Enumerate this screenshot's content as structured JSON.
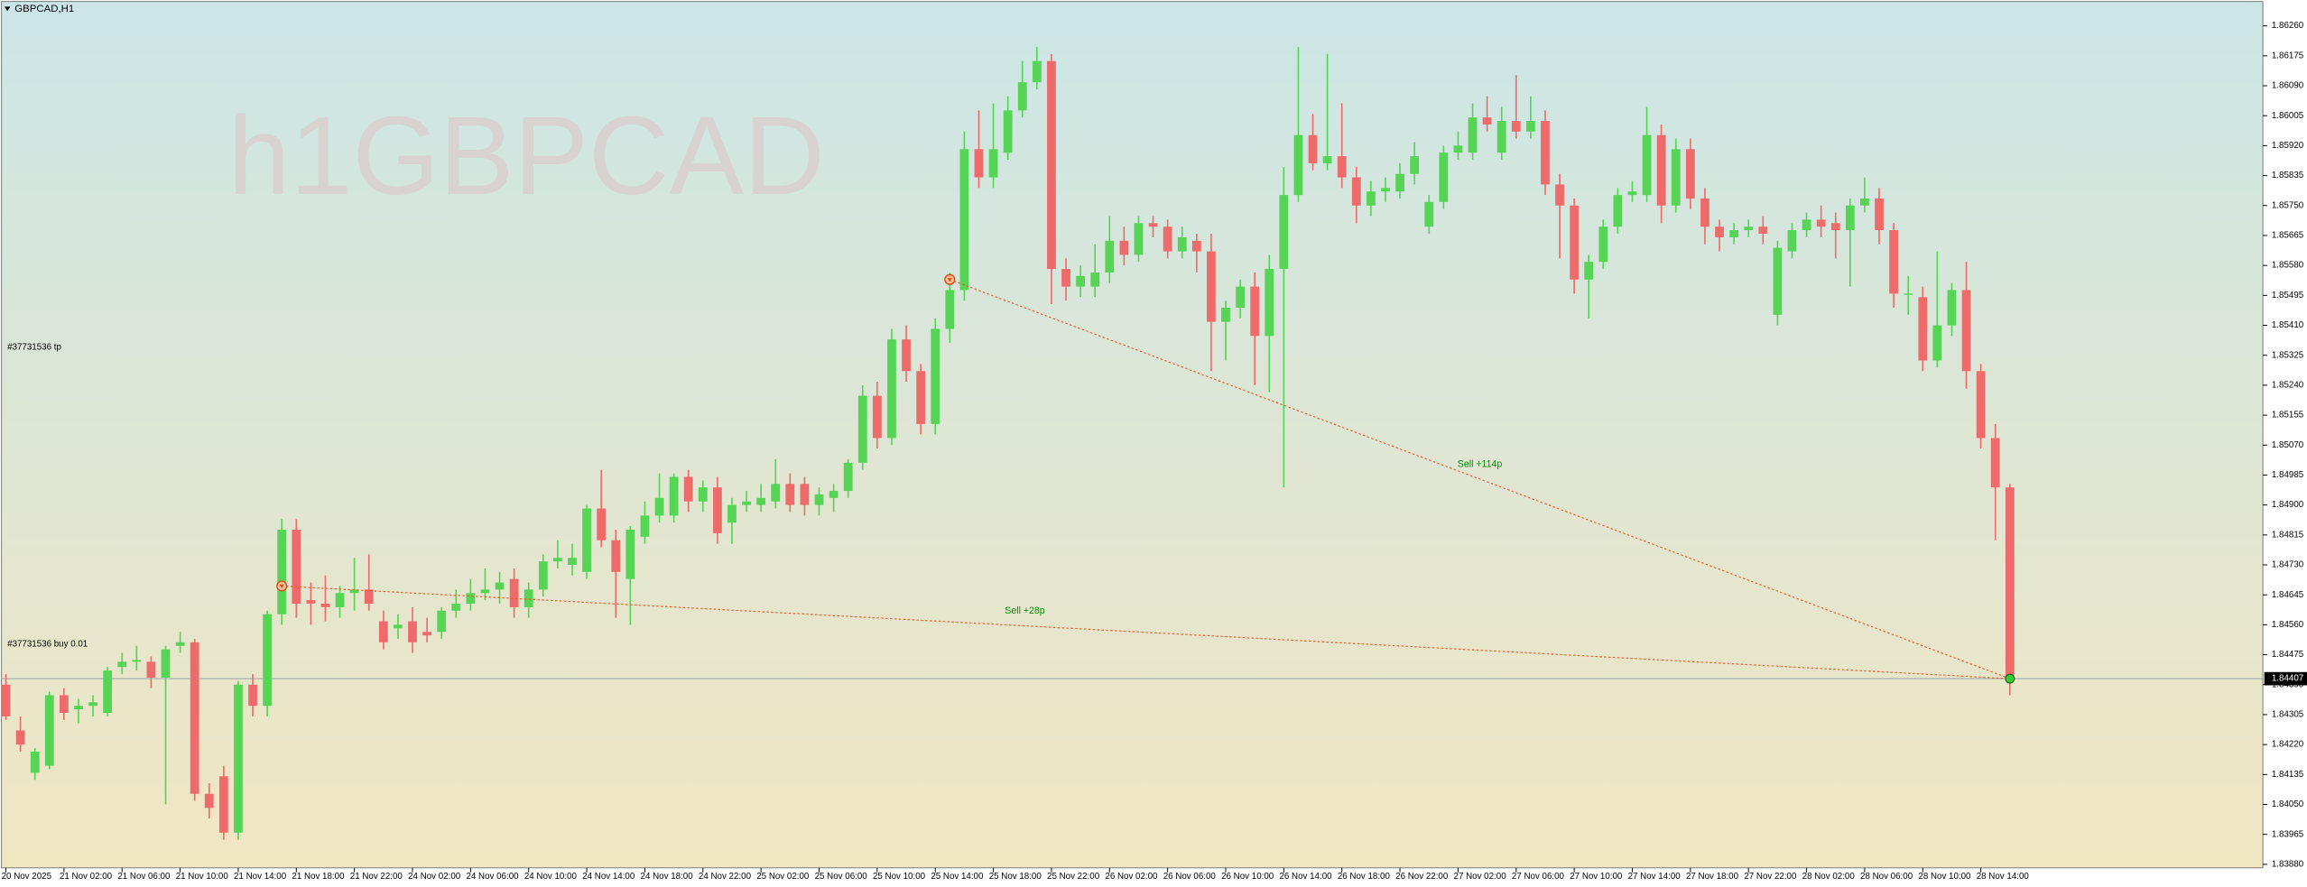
{
  "chart_data": {
    "type": "candlestick",
    "title": "GBPCAD,H1",
    "watermark": "h1GBPCAD",
    "colors": {
      "up": "#55d455",
      "down": "#ee6b6b"
    },
    "ylim": [
      1.8387,
      1.86325
    ],
    "yticks": [
      {
        "value": 1.8626,
        "label": "1.86260"
      },
      1.86175,
      {
        "value": 1.8609,
        "label": "1.86090"
      },
      1.86005,
      {
        "value": 1.8592,
        "label": "1.85920"
      },
      1.85835,
      {
        "value": 1.8575,
        "label": "1.85750"
      },
      1.85665,
      {
        "value": 1.8558,
        "label": "1.85580"
      },
      1.85495,
      {
        "value": 1.8541,
        "label": "1.85410"
      },
      1.85325,
      {
        "value": 1.8524,
        "label": "1.85240"
      },
      1.85155,
      {
        "value": 1.8507,
        "label": "1.85070"
      },
      1.84985,
      {
        "value": 1.849,
        "label": "1.84900"
      },
      1.84815,
      {
        "value": 1.8473,
        "label": "1.84730"
      },
      1.84645,
      {
        "value": 1.8456,
        "label": "1.84560"
      },
      1.84475,
      {
        "value": 1.8439,
        "label": "1.84390"
      },
      1.84305,
      {
        "value": 1.8422,
        "label": "1.84220"
      },
      1.84135,
      {
        "value": 1.8405,
        "label": "1.84050"
      },
      1.83965,
      {
        "value": 1.8388,
        "label": "1.83880"
      }
    ],
    "bid": 1.84407,
    "x_labels": [
      "20 Nov 2025",
      "21 Nov 02:00",
      "21 Nov 06:00",
      "21 Nov 10:00",
      "21 Nov 14:00",
      "21 Nov 18:00",
      "21 Nov 22:00",
      "24 Nov 02:00",
      "24 Nov 06:00",
      "24 Nov 10:00",
      "24 Nov 14:00",
      "24 Nov 18:00",
      "24 Nov 22:00",
      "25 Nov 02:00",
      "25 Nov 06:00",
      "25 Nov 10:00",
      "25 Nov 14:00",
      "25 Nov 18:00",
      "25 Nov 22:00",
      "26 Nov 02:00",
      "26 Nov 06:00",
      "26 Nov 10:00",
      "26 Nov 14:00",
      "26 Nov 18:00",
      "26 Nov 22:00",
      "27 Nov 02:00",
      "27 Nov 06:00",
      "27 Nov 10:00",
      "27 Nov 14:00",
      "27 Nov 18:00",
      "27 Nov 22:00",
      "28 Nov 02:00",
      "28 Nov 06:00",
      "28 Nov 10:00",
      "28 Nov 14:00"
    ],
    "order_labels": [
      "#37731536 tp",
      "#37731536 buy 0.01"
    ],
    "trades": [
      {
        "label": "Sell +28p",
        "open_bar": 19,
        "open": 1.8467,
        "close_bar": 138,
        "close": 1.84407
      },
      {
        "label": "Sell +114p",
        "open_bar": 65,
        "open": 1.8554,
        "close_bar": 138,
        "close": 1.84407
      }
    ],
    "candles": [
      [
        1.8439,
        1.8442,
        1.8429,
        1.843
      ],
      [
        1.8426,
        1.843,
        1.842,
        1.8422
      ],
      [
        1.8414,
        1.8421,
        1.8412,
        1.842
      ],
      [
        1.8416,
        1.8437,
        1.8415,
        1.8436
      ],
      [
        1.8436,
        1.8438,
        1.8429,
        1.8431
      ],
      [
        1.8432,
        1.8435,
        1.8428,
        1.8433
      ],
      [
        1.8433,
        1.8436,
        1.843,
        1.8434
      ],
      [
        1.8431,
        1.8444,
        1.843,
        1.8443
      ],
      [
        1.8444,
        1.8448,
        1.8442,
        1.84455
      ],
      [
        1.84455,
        1.845,
        1.8443,
        1.8446
      ],
      [
        1.84455,
        1.8447,
        1.8438,
        1.8441
      ],
      [
        1.8441,
        1.845,
        1.8405,
        1.8449
      ],
      [
        1.845,
        1.8454,
        1.8448,
        1.8451
      ],
      [
        1.8451,
        1.8452,
        1.8406,
        1.8408
      ],
      [
        1.8408,
        1.8411,
        1.8401,
        1.8404
      ],
      [
        1.8413,
        1.8416,
        1.8395,
        1.8397
      ],
      [
        1.8397,
        1.844,
        1.8395,
        1.8439
      ],
      [
        1.8439,
        1.8442,
        1.843,
        1.8433
      ],
      [
        1.8433,
        1.846,
        1.843,
        1.8459
      ],
      [
        1.8459,
        1.8486,
        1.8456,
        1.8483
      ],
      [
        1.8483,
        1.8486,
        1.8458,
        1.8462
      ],
      [
        1.8463,
        1.8468,
        1.8456,
        1.8462
      ],
      [
        1.8462,
        1.847,
        1.8457,
        1.8461
      ],
      [
        1.8461,
        1.8467,
        1.8458,
        1.8465
      ],
      [
        1.8465,
        1.8475,
        1.846,
        1.8466
      ],
      [
        1.8466,
        1.8476,
        1.846,
        1.8462
      ],
      [
        1.8457,
        1.846,
        1.8449,
        1.8451
      ],
      [
        1.8455,
        1.8459,
        1.8452,
        1.8456
      ],
      [
        1.8457,
        1.8461,
        1.8448,
        1.8451
      ],
      [
        1.8454,
        1.8458,
        1.8451,
        1.8453
      ],
      [
        1.8454,
        1.8461,
        1.8452,
        1.846
      ],
      [
        1.846,
        1.8466,
        1.8458,
        1.8462
      ],
      [
        1.8462,
        1.8469,
        1.846,
        1.8465
      ],
      [
        1.8465,
        1.8472,
        1.8463,
        1.8466
      ],
      [
        1.8466,
        1.8471,
        1.8462,
        1.8468
      ],
      [
        1.8469,
        1.8472,
        1.8458,
        1.8461
      ],
      [
        1.8461,
        1.8468,
        1.8458,
        1.8466
      ],
      [
        1.8466,
        1.8476,
        1.8464,
        1.8474
      ],
      [
        1.8474,
        1.848,
        1.8472,
        1.8475
      ],
      [
        1.8473,
        1.8479,
        1.847,
        1.8475
      ],
      [
        1.8471,
        1.849,
        1.8469,
        1.8489
      ],
      [
        1.8489,
        1.85,
        1.8478,
        1.848
      ],
      [
        1.848,
        1.8483,
        1.8458,
        1.8471
      ],
      [
        1.8469,
        1.8484,
        1.8456,
        1.8483
      ],
      [
        1.8481,
        1.8491,
        1.8479,
        1.8487
      ],
      [
        1.8487,
        1.8499,
        1.8485,
        1.8492
      ],
      [
        1.8487,
        1.8499,
        1.8485,
        1.8498
      ],
      [
        1.8498,
        1.85,
        1.8488,
        1.8491
      ],
      [
        1.8491,
        1.8497,
        1.8488,
        1.8495
      ],
      [
        1.8495,
        1.8498,
        1.8479,
        1.8482
      ],
      [
        1.8485,
        1.8492,
        1.8479,
        1.849
      ],
      [
        1.849,
        1.8494,
        1.8488,
        1.8491
      ],
      [
        1.849,
        1.8496,
        1.8488,
        1.8492
      ],
      [
        1.8491,
        1.8503,
        1.8489,
        1.8496
      ],
      [
        1.8496,
        1.8499,
        1.8488,
        1.849
      ],
      [
        1.8496,
        1.8498,
        1.8487,
        1.849
      ],
      [
        1.849,
        1.8495,
        1.8487,
        1.8493
      ],
      [
        1.8492,
        1.8496,
        1.8488,
        1.8494
      ],
      [
        1.8494,
        1.8503,
        1.8492,
        1.8502
      ],
      [
        1.8502,
        1.8524,
        1.85,
        1.8521
      ],
      [
        1.8521,
        1.8525,
        1.8506,
        1.8509
      ],
      [
        1.8509,
        1.854,
        1.8507,
        1.8537
      ],
      [
        1.8537,
        1.8541,
        1.8525,
        1.8528
      ],
      [
        1.8528,
        1.853,
        1.851,
        1.8513
      ],
      [
        1.8513,
        1.8543,
        1.851,
        1.854
      ],
      [
        1.854,
        1.8556,
        1.8536,
        1.8551
      ],
      [
        1.8551,
        1.8596,
        1.8548,
        1.8591
      ],
      [
        1.8591,
        1.8602,
        1.858,
        1.8583
      ],
      [
        1.8583,
        1.8604,
        1.858,
        1.8591
      ],
      [
        1.859,
        1.8606,
        1.8588,
        1.8602
      ],
      [
        1.8602,
        1.8616,
        1.86,
        1.861
      ],
      [
        1.861,
        1.862,
        1.8608,
        1.8616
      ],
      [
        1.8616,
        1.8618,
        1.8547,
        1.8557
      ],
      [
        1.8557,
        1.856,
        1.8548,
        1.8552
      ],
      [
        1.8552,
        1.8558,
        1.8549,
        1.8555
      ],
      [
        1.8552,
        1.8564,
        1.8549,
        1.8556
      ],
      [
        1.8556,
        1.8572,
        1.8553,
        1.8565
      ],
      [
        1.8565,
        1.8569,
        1.8558,
        1.8561
      ],
      [
        1.8561,
        1.8572,
        1.8559,
        1.857
      ],
      [
        1.857,
        1.8572,
        1.8566,
        1.8569
      ],
      [
        1.8569,
        1.8571,
        1.856,
        1.8562
      ],
      [
        1.8562,
        1.8569,
        1.856,
        1.8566
      ],
      [
        1.8565,
        1.8567,
        1.8556,
        1.8562
      ],
      [
        1.8562,
        1.8567,
        1.8528,
        1.8542
      ],
      [
        1.8542,
        1.8548,
        1.8531,
        1.8546
      ],
      [
        1.8546,
        1.8554,
        1.8543,
        1.8552
      ],
      [
        1.8552,
        1.8556,
        1.8524,
        1.8538
      ],
      [
        1.8538,
        1.8561,
        1.8522,
        1.8557
      ],
      [
        1.8557,
        1.8586,
        1.8495,
        1.8578
      ],
      [
        1.8578,
        1.862,
        1.8576,
        1.8595
      ],
      [
        1.8595,
        1.8601,
        1.8585,
        1.8587
      ],
      [
        1.8587,
        1.8618,
        1.8585,
        1.8589
      ],
      [
        1.8589,
        1.8604,
        1.858,
        1.8583
      ],
      [
        1.8583,
        1.8586,
        1.857,
        1.8575
      ],
      [
        1.8575,
        1.8582,
        1.8572,
        1.8579
      ],
      [
        1.8579,
        1.8583,
        1.8576,
        1.858
      ],
      [
        1.8579,
        1.8587,
        1.8577,
        1.8584
      ],
      [
        1.8584,
        1.8593,
        1.8581,
        1.8589
      ],
      [
        1.8569,
        1.8578,
        1.8567,
        1.8576
      ],
      [
        1.8576,
        1.8592,
        1.8574,
        1.859
      ],
      [
        1.859,
        1.8596,
        1.8588,
        1.8592
      ],
      [
        1.859,
        1.8604,
        1.8588,
        1.86
      ],
      [
        1.86,
        1.8606,
        1.8596,
        1.8598
      ],
      [
        1.859,
        1.8603,
        1.8588,
        1.8599
      ],
      [
        1.8599,
        1.8612,
        1.8594,
        1.8596
      ],
      [
        1.8596,
        1.8606,
        1.8594,
        1.8599
      ],
      [
        1.8599,
        1.8602,
        1.8578,
        1.8581
      ],
      [
        1.8581,
        1.8584,
        1.856,
        1.8575
      ],
      [
        1.8575,
        1.8577,
        1.855,
        1.8554
      ],
      [
        1.8554,
        1.8561,
        1.8543,
        1.8559
      ],
      [
        1.8559,
        1.8571,
        1.8557,
        1.8569
      ],
      [
        1.8569,
        1.858,
        1.8567,
        1.8578
      ],
      [
        1.8578,
        1.8582,
        1.8576,
        1.8579
      ],
      [
        1.8578,
        1.8603,
        1.8576,
        1.8595
      ],
      [
        1.8595,
        1.8598,
        1.857,
        1.8575
      ],
      [
        1.8575,
        1.8594,
        1.8573,
        1.8591
      ],
      [
        1.8591,
        1.8594,
        1.8574,
        1.8577
      ],
      [
        1.8577,
        1.858,
        1.8564,
        1.8569
      ],
      [
        1.8569,
        1.8571,
        1.8562,
        1.8566
      ],
      [
        1.8566,
        1.857,
        1.8564,
        1.8568
      ],
      [
        1.8568,
        1.8571,
        1.8566,
        1.8569
      ],
      [
        1.8569,
        1.8572,
        1.8564,
        1.8567
      ],
      [
        1.8544,
        1.8565,
        1.8541,
        1.8563
      ],
      [
        1.8562,
        1.857,
        1.856,
        1.8568
      ],
      [
        1.8568,
        1.8573,
        1.8566,
        1.8571
      ],
      [
        1.8571,
        1.8575,
        1.8566,
        1.8569
      ],
      [
        1.857,
        1.8573,
        1.856,
        1.8568
      ],
      [
        1.8568,
        1.8577,
        1.8552,
        1.8575
      ],
      [
        1.8575,
        1.8583,
        1.8573,
        1.8577
      ],
      [
        1.8577,
        1.858,
        1.8564,
        1.8568
      ],
      [
        1.8568,
        1.857,
        1.8546,
        1.855
      ],
      [
        1.855,
        1.8555,
        1.8544,
        1.855
      ],
      [
        1.8549,
        1.8552,
        1.8528,
        1.8531
      ],
      [
        1.8531,
        1.8562,
        1.8529,
        1.8541
      ],
      [
        1.8541,
        1.8553,
        1.8538,
        1.8551
      ],
      [
        1.8551,
        1.8559,
        1.8523,
        1.8528
      ],
      [
        1.8528,
        1.853,
        1.8506,
        1.8509
      ],
      [
        1.8509,
        1.8513,
        1.848,
        1.8495
      ],
      [
        1.8495,
        1.8496,
        1.8436,
        1.84407
      ]
    ]
  }
}
